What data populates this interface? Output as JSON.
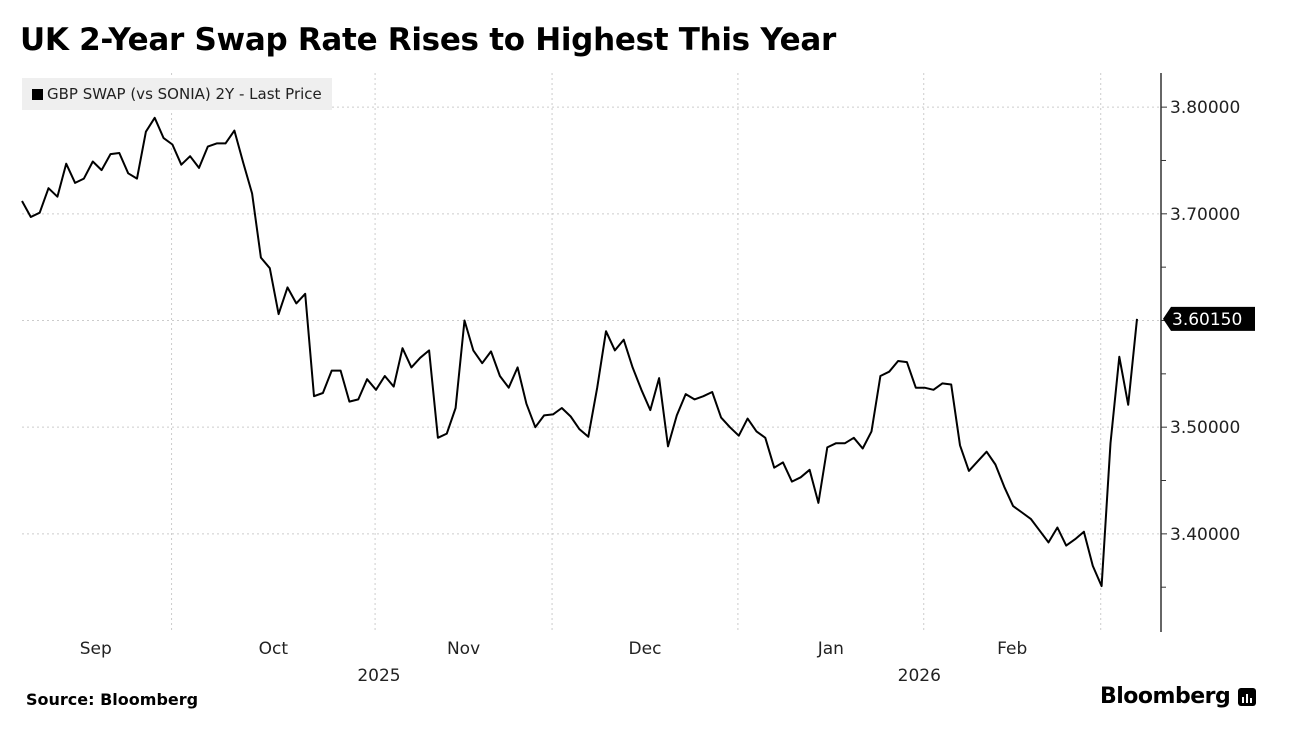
{
  "title": "UK 2-Year Swap Rate Rises to Highest This Year",
  "source": "Source: Bloomberg",
  "logo": "Bloomberg",
  "chart_data": {
    "type": "line",
    "title": "UK 2-Year Swap Rate Rises to Highest This Year",
    "legend": {
      "position": "top-left",
      "entries": [
        "GBP SWAP (vs SONIA) 2Y - Last Price"
      ]
    },
    "series": [
      {
        "name": "GBP SWAP (vs SONIA) 2Y - Last Price",
        "color": "#000000",
        "last_value_label": "3.60150",
        "points": [
          [
            "2025-09-08",
            3.712
          ],
          [
            "2025-09-09",
            3.697
          ],
          [
            "2025-09-10",
            3.701
          ],
          [
            "2025-09-11",
            3.724
          ],
          [
            "2025-09-12",
            3.716
          ],
          [
            "2025-09-15",
            3.747
          ],
          [
            "2025-09-16",
            3.729
          ],
          [
            "2025-09-17",
            3.733
          ],
          [
            "2025-09-18",
            3.749
          ],
          [
            "2025-09-19",
            3.741
          ],
          [
            "2025-09-22",
            3.756
          ],
          [
            "2025-09-23",
            3.757
          ],
          [
            "2025-09-24",
            3.738
          ],
          [
            "2025-09-25",
            3.733
          ],
          [
            "2025-09-26",
            3.777
          ],
          [
            "2025-09-29",
            3.79
          ],
          [
            "2025-09-30",
            3.771
          ],
          [
            "2025-10-01",
            3.765
          ],
          [
            "2025-10-02",
            3.746
          ],
          [
            "2025-10-03",
            3.754
          ],
          [
            "2025-10-06",
            3.743
          ],
          [
            "2025-10-07",
            3.763
          ],
          [
            "2025-10-08",
            3.766
          ],
          [
            "2025-10-09",
            3.766
          ],
          [
            "2025-10-10",
            3.778
          ],
          [
            "2025-10-13",
            3.748
          ],
          [
            "2025-10-14",
            3.719
          ],
          [
            "2025-10-15",
            3.659
          ],
          [
            "2025-10-16",
            3.649
          ],
          [
            "2025-10-17",
            3.606
          ],
          [
            "2025-10-20",
            3.631
          ],
          [
            "2025-10-21",
            3.616
          ],
          [
            "2025-10-22",
            3.625
          ],
          [
            "2025-10-23",
            3.529
          ],
          [
            "2025-10-24",
            3.532
          ],
          [
            "2025-10-27",
            3.553
          ],
          [
            "2025-10-28",
            3.553
          ],
          [
            "2025-10-29",
            3.524
          ],
          [
            "2025-10-30",
            3.526
          ],
          [
            "2025-10-31",
            3.545
          ],
          [
            "2025-11-03",
            3.535
          ],
          [
            "2025-11-04",
            3.548
          ],
          [
            "2025-11-05",
            3.538
          ],
          [
            "2025-11-06",
            3.574
          ],
          [
            "2025-11-07",
            3.556
          ],
          [
            "2025-11-10",
            3.565
          ],
          [
            "2025-11-11",
            3.572
          ],
          [
            "2025-11-12",
            3.49
          ],
          [
            "2025-11-13",
            3.494
          ],
          [
            "2025-11-14",
            3.518
          ],
          [
            "2025-11-17",
            3.6
          ],
          [
            "2025-11-18",
            3.572
          ],
          [
            "2025-11-19",
            3.56
          ],
          [
            "2025-11-20",
            3.571
          ],
          [
            "2025-11-21",
            3.548
          ],
          [
            "2025-11-24",
            3.537
          ],
          [
            "2025-11-25",
            3.556
          ],
          [
            "2025-11-26",
            3.522
          ],
          [
            "2025-11-27",
            3.5
          ],
          [
            "2025-11-28",
            3.511
          ],
          [
            "2025-12-01",
            3.512
          ],
          [
            "2025-12-02",
            3.518
          ],
          [
            "2025-12-03",
            3.51
          ],
          [
            "2025-12-04",
            3.498
          ],
          [
            "2025-12-05",
            3.491
          ],
          [
            "2025-12-08",
            3.537
          ],
          [
            "2025-12-09",
            3.59
          ],
          [
            "2025-12-10",
            3.572
          ],
          [
            "2025-12-11",
            3.582
          ],
          [
            "2025-12-12",
            3.556
          ],
          [
            "2025-12-15",
            3.535
          ],
          [
            "2025-12-16",
            3.516
          ],
          [
            "2025-12-17",
            3.546
          ],
          [
            "2025-12-18",
            3.482
          ],
          [
            "2025-12-19",
            3.511
          ],
          [
            "2025-12-22",
            3.531
          ],
          [
            "2025-12-23",
            3.526
          ],
          [
            "2025-12-24",
            3.529
          ],
          [
            "2025-12-29",
            3.533
          ],
          [
            "2025-12-30",
            3.509
          ],
          [
            "2025-12-31",
            3.5
          ],
          [
            "2026-01-02",
            3.492
          ],
          [
            "2026-01-05",
            3.508
          ],
          [
            "2026-01-06",
            3.496
          ],
          [
            "2026-01-07",
            3.49
          ],
          [
            "2026-01-08",
            3.462
          ],
          [
            "2026-01-09",
            3.467
          ],
          [
            "2026-01-12",
            3.449
          ],
          [
            "2026-01-13",
            3.453
          ],
          [
            "2026-01-14",
            3.46
          ],
          [
            "2026-01-15",
            3.429
          ],
          [
            "2026-01-16",
            3.481
          ],
          [
            "2026-01-19",
            3.485
          ],
          [
            "2026-01-20",
            3.485
          ],
          [
            "2026-01-21",
            3.49
          ],
          [
            "2026-01-22",
            3.48
          ],
          [
            "2026-01-23",
            3.496
          ],
          [
            "2026-01-26",
            3.548
          ],
          [
            "2026-01-27",
            3.552
          ],
          [
            "2026-01-28",
            3.562
          ],
          [
            "2026-01-29",
            3.561
          ],
          [
            "2026-01-30",
            3.537
          ],
          [
            "2026-02-02",
            3.537
          ],
          [
            "2026-02-03",
            3.535
          ],
          [
            "2026-02-04",
            3.541
          ],
          [
            "2026-02-05",
            3.54
          ],
          [
            "2026-02-06",
            3.483
          ],
          [
            "2026-02-09",
            3.459
          ],
          [
            "2026-02-10",
            3.468
          ],
          [
            "2026-02-11",
            3.477
          ],
          [
            "2026-02-12",
            3.465
          ],
          [
            "2026-02-13",
            3.444
          ],
          [
            "2026-02-16",
            3.426
          ],
          [
            "2026-02-17",
            3.42
          ],
          [
            "2026-02-18",
            3.414
          ],
          [
            "2026-02-19",
            3.403
          ],
          [
            "2026-02-20",
            3.392
          ],
          [
            "2026-02-23",
            3.406
          ],
          [
            "2026-02-24",
            3.389
          ],
          [
            "2026-02-25",
            3.395
          ],
          [
            "2026-02-26",
            3.402
          ],
          [
            "2026-02-27",
            3.37
          ],
          [
            "2026-03-02",
            3.351
          ],
          [
            "2026-03-03",
            3.485
          ],
          [
            "2026-03-04",
            3.566
          ],
          [
            "2026-03-05",
            3.521
          ],
          [
            "2026-03-06",
            3.6015
          ]
        ]
      }
    ],
    "y_axis": {
      "position": "right",
      "ylim": [
        3.308,
        3.832
      ],
      "ticks": [
        3.8,
        3.7,
        3.6,
        3.5,
        3.4
      ],
      "tick_labels": [
        "3.80000",
        "3.70000",
        "3.60000",
        "3.50000",
        "3.40000"
      ]
    },
    "x_axis": {
      "scale": "trading-days",
      "month_labels": [
        {
          "label": "Sep",
          "month": "2025-09"
        },
        {
          "label": "Oct",
          "month": "2025-10"
        },
        {
          "label": "Nov",
          "month": "2025-11"
        },
        {
          "label": "Dec",
          "month": "2025-12"
        },
        {
          "label": "Jan",
          "month": "2026-01"
        },
        {
          "label": "Feb",
          "month": "2026-02"
        }
      ],
      "year_labels": [
        {
          "label": "2025",
          "from": "2025-09",
          "to": "2025-12"
        },
        {
          "label": "2026",
          "from": "2026-01",
          "to": "2026-02"
        }
      ]
    },
    "grid": true
  }
}
